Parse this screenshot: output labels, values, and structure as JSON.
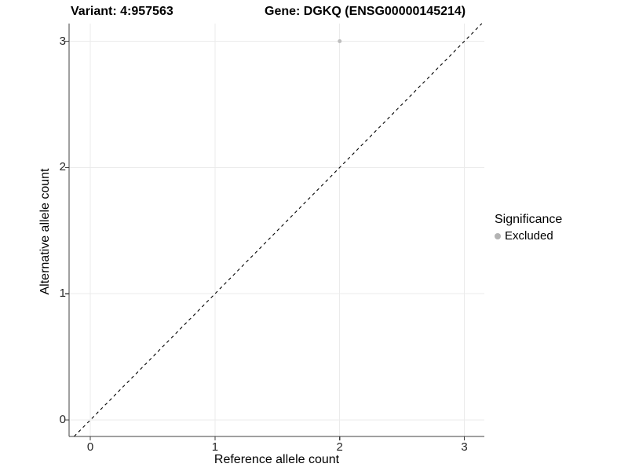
{
  "title": {
    "variant": "Variant: 4:957563",
    "gene": "Gene: DGKQ (ENSG00000145214)"
  },
  "chart_data": {
    "type": "scatter",
    "title_left": "Variant: 4:957563",
    "title_right": "Gene: DGKQ (ENSG00000145214)",
    "xlabel": "Reference allele count",
    "ylabel": "Alternative allele count",
    "x_ticks": [
      0,
      1,
      2,
      3
    ],
    "y_ticks": [
      0,
      1,
      2,
      3
    ],
    "xlim": [
      -0.17,
      3.16
    ],
    "ylim": [
      -0.13,
      3.14
    ],
    "grid": true,
    "series": [
      {
        "name": "Excluded",
        "color": "#bebebe",
        "points": [
          {
            "x": 2,
            "y": 3
          }
        ]
      }
    ],
    "reference_line": {
      "type": "identity",
      "slope": 1,
      "intercept": 0,
      "style": "dashed",
      "color": "#000000"
    },
    "legend": {
      "title": "Significance",
      "position": "right",
      "items": [
        {
          "label": "Excluded",
          "color": "#b3b3b3"
        }
      ]
    },
    "colors": {
      "grid": "#ebebeb",
      "axis_line": "#404040",
      "tick": "#404040",
      "point": "#bebebe"
    }
  }
}
